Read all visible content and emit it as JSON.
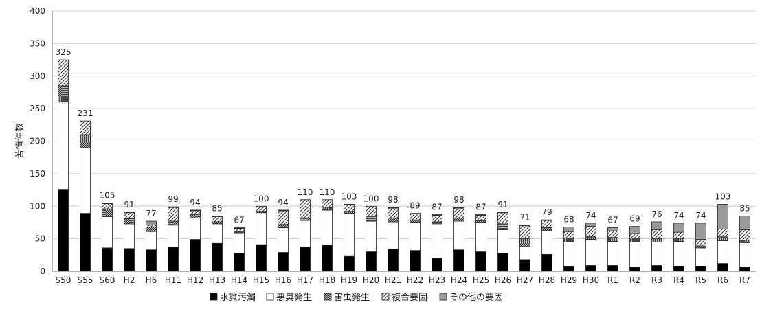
{
  "chart_data": {
    "type": "bar",
    "stacked": true,
    "ylabel": "苦情件数",
    "ylim": [
      0,
      400
    ],
    "yticks": [
      0,
      50,
      100,
      150,
      200,
      250,
      300,
      350,
      400
    ],
    "grid": true,
    "legend_position": "bottom",
    "categories": [
      "S50",
      "S55",
      "S60",
      "H2",
      "H6",
      "H11",
      "H12",
      "H13",
      "H14",
      "H15",
      "H16",
      "H17",
      "H18",
      "H19",
      "H20",
      "H21",
      "H22",
      "H23",
      "H24",
      "H25",
      "H26",
      "H27",
      "H28",
      "H29",
      "H30",
      "R1",
      "R2",
      "R3",
      "R4",
      "R5",
      "R6",
      "R7"
    ],
    "totals": [
      325,
      231,
      105,
      91,
      77,
      99,
      94,
      85,
      67,
      100,
      94,
      110,
      110,
      103,
      100,
      98,
      89,
      87,
      98,
      87,
      91,
      71,
      79,
      68,
      74,
      67,
      69,
      76,
      74,
      74,
      103,
      85
    ],
    "series": [
      {
        "name": "水質汚濁",
        "pattern": "solid-black",
        "values": [
          126,
          89,
          36,
          35,
          33,
          37,
          49,
          43,
          28,
          41,
          29,
          37,
          40,
          23,
          30,
          34,
          32,
          20,
          33,
          30,
          28,
          18,
          26,
          7,
          9,
          9,
          6,
          9,
          8,
          8,
          12,
          6
        ]
      },
      {
        "name": "悪臭発生",
        "pattern": "white",
        "values": [
          134,
          101,
          48,
          38,
          28,
          34,
          33,
          30,
          31,
          49,
          38,
          41,
          54,
          66,
          47,
          42,
          43,
          53,
          44,
          45,
          36,
          20,
          37,
          38,
          40,
          37,
          39,
          36,
          38,
          28,
          35,
          38
        ]
      },
      {
        "name": "害虫発生",
        "pattern": "crosshatch",
        "values": [
          25,
          20,
          12,
          8,
          7,
          6,
          5,
          3,
          2,
          2,
          5,
          4,
          4,
          3,
          8,
          6,
          4,
          3,
          5,
          3,
          10,
          12,
          4,
          6,
          4,
          6,
          6,
          5,
          4,
          3,
          6,
          4
        ]
      },
      {
        "name": "複合要因",
        "pattern": "diagonal",
        "values": [
          40,
          21,
          8,
          9,
          3,
          21,
          6,
          8,
          5,
          8,
          21,
          28,
          12,
          10,
          15,
          15,
          9,
          10,
          15,
          8,
          16,
          20,
          11,
          10,
          16,
          10,
          7,
          14,
          10,
          10,
          12,
          16
        ]
      },
      {
        "name": "その他の要因",
        "pattern": "gray",
        "values": [
          0,
          0,
          1,
          1,
          6,
          1,
          1,
          1,
          1,
          0,
          1,
          0,
          0,
          1,
          0,
          1,
          1,
          1,
          1,
          1,
          1,
          1,
          1,
          7,
          5,
          5,
          11,
          12,
          14,
          25,
          38,
          21
        ]
      }
    ]
  },
  "legend": {
    "items": [
      {
        "label": "水質汚濁"
      },
      {
        "label": "悪臭発生"
      },
      {
        "label": "害虫発生"
      },
      {
        "label": "複合要因"
      },
      {
        "label": "その他の要因"
      }
    ]
  }
}
